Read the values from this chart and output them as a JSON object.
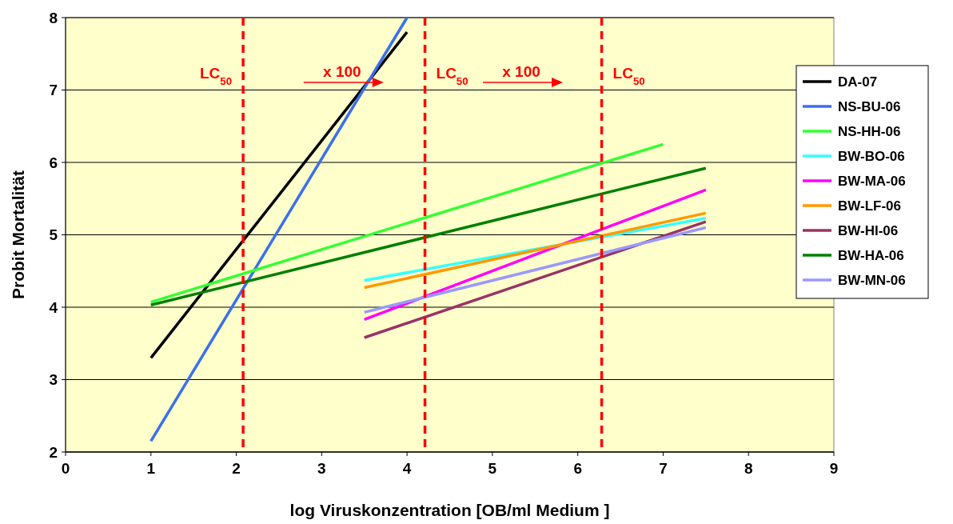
{
  "chart_data": {
    "type": "line",
    "xlabel": "log Viruskonzentration [OB/ml Medium ]",
    "ylabel": "Probit Mortalität",
    "xlim": [
      0,
      9
    ],
    "xticks": [
      0,
      1,
      2,
      3,
      4,
      5,
      6,
      7,
      8,
      9
    ],
    "ylim": [
      2,
      8
    ],
    "yticks": [
      2,
      3,
      4,
      5,
      6,
      7,
      8
    ],
    "grid": "y",
    "legend": "right",
    "line_style": "solid",
    "marker": "none",
    "series": [
      {
        "name": "DA-07",
        "color": "#000000",
        "x": [
          1,
          4
        ],
        "values": [
          3.3,
          7.8
        ]
      },
      {
        "name": "NS-BU-06",
        "color": "#3a6ff0",
        "x": [
          1,
          4
        ],
        "values": [
          2.15,
          8
        ]
      },
      {
        "name": "NS-HH-06",
        "color": "#33ff33",
        "x": [
          1,
          7
        ],
        "values": [
          4.07,
          6.25
        ]
      },
      {
        "name": "BW-BO-06",
        "color": "#33ffff",
        "x": [
          3.5,
          7.5
        ],
        "values": [
          4.37,
          5.23
        ]
      },
      {
        "name": "BW-MA-06",
        "color": "#ff00ff",
        "x": [
          3.5,
          7.5
        ],
        "values": [
          3.83,
          5.62
        ]
      },
      {
        "name": "BW-LF-06",
        "color": "#ff9900",
        "x": [
          3.5,
          7.5
        ],
        "values": [
          4.27,
          5.3
        ]
      },
      {
        "name": "BW-HI-06",
        "color": "#993366",
        "x": [
          3.5,
          7.5
        ],
        "values": [
          3.58,
          5.18
        ]
      },
      {
        "name": "BW-HA-06",
        "color": "#008000",
        "x": [
          1,
          7.5
        ],
        "values": [
          4.03,
          5.92
        ]
      },
      {
        "name": "BW-MN-06",
        "color": "#9999ff",
        "x": [
          3.5,
          7.5
        ],
        "values": [
          3.93,
          5.1
        ]
      }
    ],
    "ref_lines": [
      {
        "axis": "x",
        "value": 2.08,
        "label": "LC$_{50}$",
        "color": "#ff0000",
        "line_style": "dashed"
      },
      {
        "axis": "x",
        "value": 4.21,
        "label": "LC$_{50}$",
        "color": "#ff0000",
        "line_style": "dashed"
      },
      {
        "axis": "x",
        "value": 6.28,
        "label": "LC$_{50}$",
        "color": "#ff0000",
        "line_style": "dashed"
      }
    ],
    "annotations": [
      "x 100",
      "x 100"
    ]
  }
}
